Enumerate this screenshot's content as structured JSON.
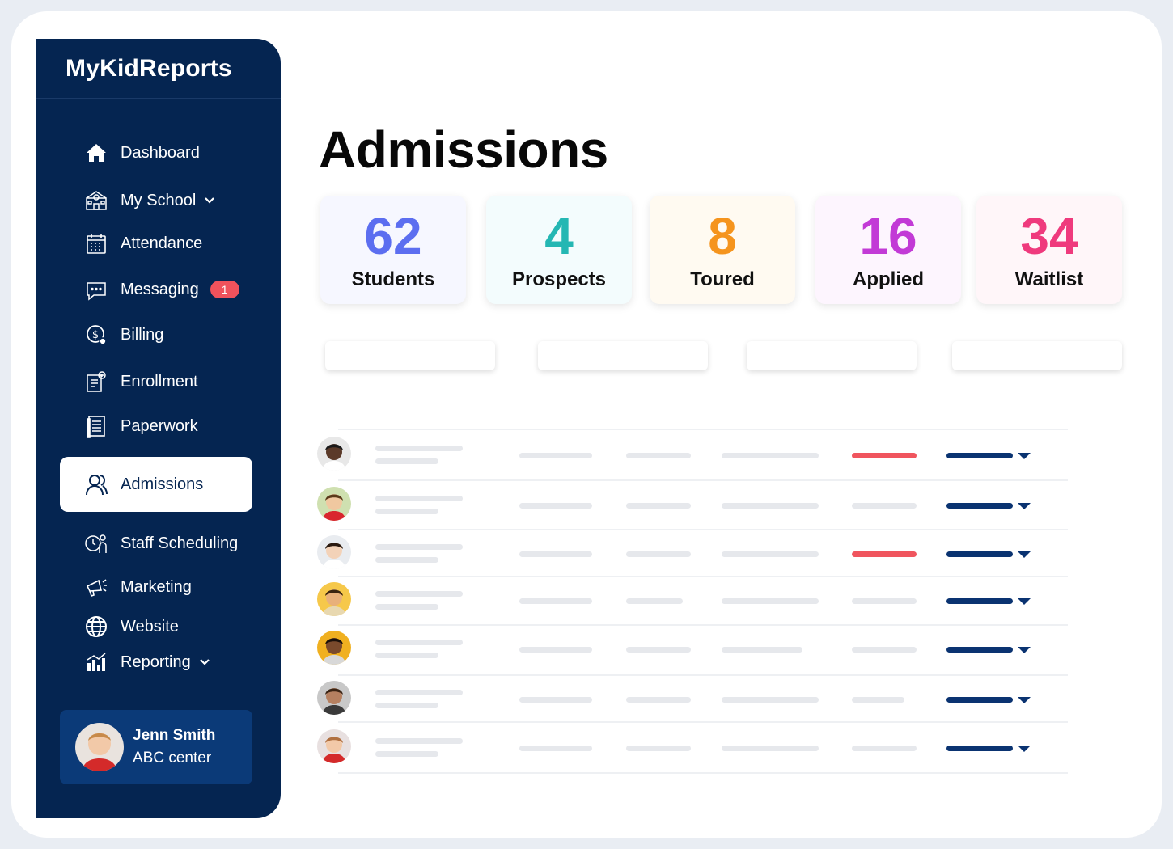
{
  "app": {
    "brand": "MyKidReports"
  },
  "sidebar": {
    "items": [
      {
        "label": "Dashboard",
        "icon": "home-icon"
      },
      {
        "label": "My School",
        "icon": "school-icon",
        "dropdown": true
      },
      {
        "label": "Attendance",
        "icon": "calendar-icon"
      },
      {
        "label": "Messaging",
        "icon": "chat-icon",
        "badge": "1"
      },
      {
        "label": "Billing",
        "icon": "dollar-icon"
      },
      {
        "label": "Enrollment",
        "icon": "clipboard-icon"
      },
      {
        "label": "Paperwork",
        "icon": "document-icon"
      },
      {
        "label": "Admissions",
        "icon": "users-icon",
        "active": true
      },
      {
        "label": "Staff Scheduling",
        "icon": "staff-clock-icon"
      },
      {
        "label": "Marketing",
        "icon": "megaphone-icon"
      },
      {
        "label": "Website",
        "icon": "globe-icon"
      },
      {
        "label": "Reporting",
        "icon": "bar-chart-icon",
        "dropdown": true
      }
    ],
    "user": {
      "name": "Jenn Smith",
      "center": "ABC center"
    }
  },
  "main": {
    "title": "Admissions",
    "stats": [
      {
        "value": "62",
        "label": "Students",
        "color": "#5c6ef0",
        "bg": "#f6f7ff"
      },
      {
        "value": "4",
        "label": "Prospects",
        "color": "#24b7b3",
        "bg": "#f3fcfd"
      },
      {
        "value": "8",
        "label": "Toured",
        "color": "#f5941d",
        "bg": "#fffaf1"
      },
      {
        "value": "16",
        "label": "Applied",
        "color": "#c23ad6",
        "bg": "#fdf5fe"
      },
      {
        "value": "34",
        "label": "Waitlist",
        "color": "#ef3a7d",
        "bg": "#fff6f9"
      }
    ],
    "rows": [
      {
        "status": "red"
      },
      {
        "status": "grey"
      },
      {
        "status": "red"
      },
      {
        "status": "grey"
      },
      {
        "status": "grey"
      },
      {
        "status": "grey"
      },
      {
        "status": "grey"
      }
    ]
  }
}
